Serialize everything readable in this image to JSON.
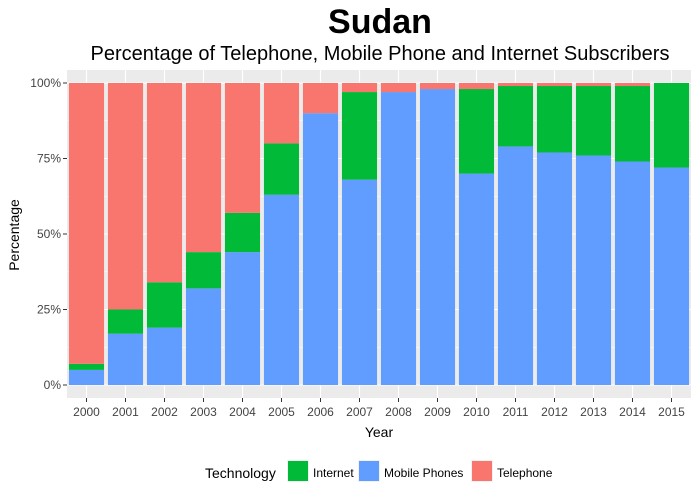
{
  "chart_data": {
    "type": "bar",
    "stacked": true,
    "title": "Sudan",
    "subtitle": "Percentage of Telephone, Mobile Phone and Internet Subscribers",
    "xlabel": "Year",
    "ylabel": "Percentage",
    "ylim": [
      0,
      100
    ],
    "yticks": [
      "0%",
      "25%",
      "50%",
      "75%",
      "100%"
    ],
    "grid": true,
    "legend": {
      "title": "Technology",
      "position": "bottom"
    },
    "categories": [
      "2000",
      "2001",
      "2002",
      "2003",
      "2004",
      "2005",
      "2006",
      "2007",
      "2008",
      "2009",
      "2010",
      "2011",
      "2012",
      "2013",
      "2014",
      "2015"
    ],
    "series": [
      {
        "name": "Mobile Phones",
        "color": "#619CFF",
        "values": [
          5,
          17,
          19,
          32,
          44,
          63,
          90,
          68,
          97,
          98,
          70,
          79,
          77,
          76,
          74,
          72
        ]
      },
      {
        "name": "Internet",
        "color": "#00BA38",
        "values": [
          2,
          8,
          15,
          12,
          13,
          17,
          0,
          29,
          0,
          0,
          28,
          20,
          22,
          23,
          25,
          28
        ]
      },
      {
        "name": "Telephone",
        "color": "#F8766D",
        "values": [
          93,
          75,
          66,
          56,
          43,
          20,
          10,
          3,
          3,
          2,
          2,
          1,
          1,
          1,
          1,
          0
        ]
      }
    ],
    "legend_order": [
      "Internet",
      "Mobile Phones",
      "Telephone"
    ]
  }
}
